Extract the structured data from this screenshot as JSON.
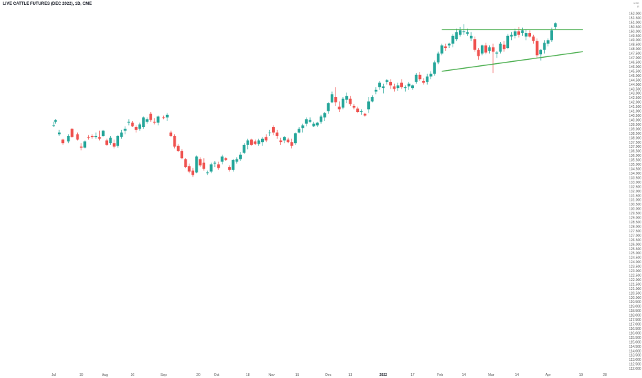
{
  "header": {
    "title": "LIVE CATTLE FUTURES (DEC 2022), 1D, CME"
  },
  "corner": {
    "line1": "USD",
    "line2": "R"
  },
  "chart_data": {
    "type": "candlestick",
    "title": "LIVE CATTLE FUTURES (DEC 2022), 1D, CME",
    "xlabel": "",
    "ylabel": "",
    "ylim": [
      111.25,
      152.75
    ],
    "y_ticks": [
      "152.000",
      "151.500",
      "151.000",
      "150.500",
      "150.000",
      "149.500",
      "149.000",
      "148.500",
      "148.000",
      "147.500",
      "147.000",
      "146.500",
      "146.000",
      "145.500",
      "145.000",
      "144.500",
      "144.000",
      "143.500",
      "143.000",
      "142.500",
      "142.000",
      "141.500",
      "141.000",
      "140.500",
      "140.000",
      "139.500",
      "139.000",
      "138.500",
      "138.000",
      "137.500",
      "137.000",
      "136.500",
      "136.000",
      "135.500",
      "135.000",
      "134.500",
      "134.000",
      "133.500",
      "133.000",
      "132.500",
      "132.000",
      "131.500",
      "131.000",
      "130.500",
      "130.000",
      "129.500",
      "129.000",
      "128.500",
      "128.000",
      "127.500",
      "127.000",
      "126.500",
      "126.000",
      "125.500",
      "125.000",
      "124.500",
      "124.000",
      "123.500",
      "123.000",
      "122.500",
      "122.000",
      "121.500",
      "121.000",
      "120.500",
      "120.000",
      "119.500",
      "119.000",
      "118.500",
      "118.000",
      "117.500",
      "117.000",
      "116.500",
      "116.000",
      "115.500",
      "115.000",
      "114.500",
      "114.000",
      "113.500",
      "113.000",
      "112.500",
      "112.000"
    ],
    "x_ticks": [
      {
        "label": "Jul",
        "day": 0,
        "bold": false
      },
      {
        "label": "19",
        "day": 15,
        "bold": false
      },
      {
        "label": "Aug",
        "day": 28,
        "bold": false
      },
      {
        "label": "16",
        "day": 43,
        "bold": false
      },
      {
        "label": "Sep",
        "day": 60,
        "bold": false
      },
      {
        "label": "20",
        "day": 79,
        "bold": false
      },
      {
        "label": "Oct",
        "day": 89,
        "bold": false
      },
      {
        "label": "18",
        "day": 106,
        "bold": false
      },
      {
        "label": "Nov",
        "day": 119,
        "bold": false
      },
      {
        "label": "15",
        "day": 133,
        "bold": false
      },
      {
        "label": "Dec",
        "day": 150,
        "bold": false
      },
      {
        "label": "13",
        "day": 162,
        "bold": false
      },
      {
        "label": "2022",
        "day": 180,
        "bold": true
      },
      {
        "label": "17",
        "day": 196,
        "bold": false
      },
      {
        "label": "Feb",
        "day": 211,
        "bold": false
      },
      {
        "label": "14",
        "day": 224,
        "bold": false
      },
      {
        "label": "Mar",
        "day": 239,
        "bold": false
      },
      {
        "label": "14",
        "day": 253,
        "bold": false
      },
      {
        "label": "Apr",
        "day": 270,
        "bold": false
      },
      {
        "label": "19",
        "day": 288,
        "bold": false
      },
      {
        "label": "28",
        "day": 301,
        "bold": false
      }
    ],
    "colors": {
      "up": "#26a69a",
      "down": "#ef5350",
      "trendline": "#4caf50"
    },
    "trendlines": [
      {
        "name": "resistance",
        "from": [
          212,
          150.2
        ],
        "to": [
          289,
          150.2
        ]
      },
      {
        "name": "support",
        "from": [
          212,
          145.5
        ],
        "to": [
          289,
          147.7
        ]
      }
    ],
    "grid": false,
    "legend": "none",
    "candles": [
      [
        0,
        139.4,
        139.8,
        139.2,
        139.4
      ],
      [
        1,
        139.8,
        140.1,
        139.6,
        140.0
      ],
      [
        3,
        138.4,
        138.9,
        138.2,
        138.6
      ],
      [
        5,
        137.8,
        137.9,
        137.2,
        137.4
      ],
      [
        8,
        137.6,
        138.4,
        137.4,
        138.2
      ],
      [
        10,
        139.0,
        139.1,
        138.0,
        138.1
      ],
      [
        13,
        138.4,
        138.6,
        137.7,
        137.8
      ],
      [
        15,
        137.0,
        137.4,
        136.6,
        136.9
      ],
      [
        17,
        136.9,
        137.7,
        136.8,
        137.6
      ],
      [
        19,
        138.1,
        138.3,
        137.8,
        138.0
      ],
      [
        21,
        138.2,
        138.4,
        137.9,
        138.1
      ],
      [
        23,
        138.1,
        138.6,
        137.9,
        138.2
      ],
      [
        25,
        138.1,
        138.8,
        137.7,
        137.9
      ],
      [
        27,
        138.2,
        138.9,
        138.1,
        138.8
      ],
      [
        29,
        137.7,
        137.9,
        137.1,
        137.2
      ],
      [
        31,
        137.4,
        138.2,
        137.2,
        138.0
      ],
      [
        33,
        137.4,
        137.8,
        136.8,
        137.0
      ],
      [
        35,
        137.1,
        138.3,
        136.9,
        138.2
      ],
      [
        37,
        138.1,
        138.9,
        137.9,
        138.6
      ],
      [
        39,
        138.8,
        139.3,
        138.4,
        139.0
      ],
      [
        41,
        139.7,
        140.1,
        139.4,
        139.8
      ],
      [
        43,
        139.7,
        139.9,
        139.2,
        139.3
      ],
      [
        45,
        139.2,
        139.4,
        138.6,
        138.9
      ],
      [
        47,
        139.0,
        139.7,
        138.8,
        139.5
      ],
      [
        49,
        139.2,
        140.4,
        139.0,
        140.3
      ],
      [
        51,
        139.8,
        140.3,
        139.6,
        140.1
      ],
      [
        53,
        140.7,
        140.9,
        139.8,
        140.0
      ],
      [
        55,
        139.8,
        140.2,
        139.5,
        139.7
      ],
      [
        57,
        139.7,
        140.5,
        139.4,
        140.4
      ],
      [
        60,
        140.3,
        140.5,
        140.1,
        140.2
      ],
      [
        62,
        140.3,
        140.8,
        139.9,
        140.6
      ],
      [
        64,
        138.6,
        138.8,
        138.1,
        138.2
      ],
      [
        66,
        138.2,
        138.4,
        136.8,
        137.0
      ],
      [
        68,
        137.1,
        137.3,
        136.4,
        136.5
      ],
      [
        70,
        136.5,
        136.7,
        135.6,
        135.7
      ],
      [
        72,
        135.6,
        135.7,
        134.6,
        134.7
      ],
      [
        74,
        134.8,
        135.1,
        134.0,
        134.2
      ],
      [
        76,
        134.3,
        134.6,
        133.6,
        133.8
      ],
      [
        78,
        134.1,
        136.0,
        134.0,
        135.9
      ],
      [
        80,
        135.6,
        135.8,
        134.7,
        134.9
      ],
      [
        82,
        135.2,
        135.7,
        134.3,
        134.5
      ],
      [
        84,
        134.0,
        134.3,
        133.8,
        134.1
      ],
      [
        86,
        134.2,
        135.2,
        134.0,
        135.0
      ],
      [
        88,
        135.1,
        135.4,
        134.7,
        135.2
      ],
      [
        90,
        135.0,
        135.3,
        134.4,
        134.6
      ],
      [
        92,
        135.3,
        136.1,
        135.0,
        135.9
      ],
      [
        94,
        135.7,
        135.8,
        135.4,
        135.5
      ],
      [
        96,
        134.7,
        134.9,
        134.2,
        134.4
      ],
      [
        98,
        134.4,
        135.6,
        134.2,
        135.5
      ],
      [
        100,
        135.3,
        135.8,
        135.1,
        135.6
      ],
      [
        102,
        135.6,
        136.4,
        135.4,
        136.1
      ],
      [
        104,
        136.3,
        137.4,
        136.2,
        137.2
      ],
      [
        106,
        137.2,
        137.9,
        136.7,
        137.7
      ],
      [
        108,
        137.8,
        137.9,
        137.1,
        137.2
      ],
      [
        110,
        137.6,
        137.8,
        137.2,
        137.3
      ],
      [
        112,
        137.3,
        137.9,
        137.1,
        137.7
      ],
      [
        114,
        137.5,
        138.1,
        137.1,
        137.9
      ],
      [
        116,
        138.1,
        138.4,
        137.5,
        137.7
      ],
      [
        118,
        138.6,
        138.9,
        138.2,
        138.6
      ],
      [
        120,
        139.2,
        139.4,
        138.3,
        138.6
      ],
      [
        122,
        138.6,
        138.9,
        137.9,
        138.2
      ],
      [
        124,
        137.7,
        138.0,
        137.2,
        137.5
      ],
      [
        126,
        137.7,
        138.2,
        137.4,
        138.1
      ],
      [
        128,
        137.8,
        138.0,
        137.4,
        137.5
      ],
      [
        130,
        137.5,
        137.9,
        136.8,
        137.1
      ],
      [
        132,
        137.4,
        138.6,
        137.2,
        138.5
      ],
      [
        134,
        138.6,
        139.2,
        138.5,
        139.0
      ],
      [
        136,
        139.1,
        139.6,
        138.6,
        139.4
      ],
      [
        138,
        139.6,
        140.3,
        139.3,
        140.1
      ],
      [
        140,
        139.8,
        140.3,
        139.7,
        140.0
      ],
      [
        142,
        139.3,
        139.8,
        139.2,
        139.6
      ],
      [
        144,
        139.4,
        139.8,
        139.2,
        139.7
      ],
      [
        146,
        139.8,
        140.6,
        139.6,
        140.4
      ],
      [
        148,
        140.3,
        140.9,
        139.9,
        140.8
      ],
      [
        150,
        141.0,
        142.0,
        140.7,
        141.9
      ],
      [
        152,
        142.0,
        143.2,
        141.9,
        142.9
      ],
      [
        154,
        142.6,
        143.7,
        141.6,
        142.0
      ],
      [
        156,
        141.5,
        142.1,
        140.9,
        141.2
      ],
      [
        158,
        141.4,
        142.6,
        141.2,
        142.4
      ],
      [
        160,
        142.3,
        143.1,
        141.9,
        142.7
      ],
      [
        162,
        142.4,
        142.7,
        141.6,
        141.8
      ],
      [
        164,
        141.6,
        141.8,
        141.2,
        141.4
      ],
      [
        166,
        141.3,
        141.5,
        140.8,
        140.9
      ],
      [
        168,
        140.9,
        141.2,
        140.6,
        141.0
      ],
      [
        170,
        140.7,
        140.8,
        140.4,
        140.5
      ],
      [
        172,
        141.2,
        142.6,
        140.8,
        142.1
      ],
      [
        174,
        142.1,
        142.8,
        142.0,
        142.6
      ],
      [
        176,
        143.2,
        143.7,
        142.9,
        143.4
      ],
      [
        178,
        143.7,
        144.4,
        143.4,
        144.2
      ],
      [
        180,
        143.6,
        144.1,
        143.0,
        143.8
      ],
      [
        182,
        144.3,
        144.6,
        144.0,
        144.5
      ],
      [
        184,
        144.3,
        144.6,
        143.5,
        143.9
      ],
      [
        186,
        143.8,
        144.1,
        143.2,
        143.5
      ],
      [
        188,
        143.6,
        144.2,
        143.3,
        143.9
      ],
      [
        190,
        144.2,
        144.6,
        143.5,
        143.7
      ],
      [
        192,
        143.6,
        143.9,
        143.2,
        143.7
      ],
      [
        194,
        143.8,
        144.3,
        143.4,
        144.1
      ],
      [
        196,
        143.6,
        144.0,
        143.4,
        143.9
      ],
      [
        198,
        144.3,
        145.3,
        144.1,
        145.1
      ],
      [
        200,
        145.1,
        145.4,
        144.4,
        144.6
      ],
      [
        202,
        144.4,
        144.7,
        144.0,
        144.2
      ],
      [
        204,
        144.3,
        145.2,
        144.0,
        144.9
      ],
      [
        206,
        144.9,
        145.5,
        144.6,
        145.2
      ],
      [
        208,
        145.2,
        146.7,
        145.0,
        146.5
      ],
      [
        210,
        146.5,
        147.7,
        146.3,
        147.5
      ],
      [
        212,
        147.5,
        148.6,
        147.3,
        148.4
      ],
      [
        214,
        148.3,
        148.6,
        147.8,
        148.1
      ],
      [
        216,
        148.4,
        148.7,
        148.1,
        148.6
      ],
      [
        218,
        148.6,
        149.7,
        148.2,
        149.5
      ],
      [
        220,
        149.1,
        150.3,
        148.9,
        149.9
      ],
      [
        222,
        149.6,
        150.5,
        149.4,
        150.1
      ],
      [
        224,
        149.9,
        150.8,
        149.6,
        150.0
      ],
      [
        226,
        149.7,
        150.3,
        149.5,
        149.9
      ],
      [
        228,
        149.2,
        149.9,
        148.9,
        149.5
      ],
      [
        230,
        149.1,
        149.4,
        147.7,
        147.9
      ],
      [
        232,
        147.9,
        148.1,
        146.8,
        147.2
      ],
      [
        234,
        147.5,
        148.5,
        147.3,
        148.4
      ],
      [
        236,
        148.4,
        148.7,
        147.4,
        147.6
      ],
      [
        238,
        147.8,
        148.4,
        147.5,
        148.2
      ],
      [
        240,
        148.2,
        148.6,
        145.3,
        147.7
      ],
      [
        242,
        147.5,
        147.8,
        147.0,
        147.6
      ],
      [
        244,
        147.7,
        148.8,
        147.5,
        148.6
      ],
      [
        246,
        148.5,
        148.9,
        147.7,
        148.0
      ],
      [
        248,
        148.1,
        149.7,
        148.0,
        149.5
      ],
      [
        250,
        149.4,
        149.9,
        149.0,
        149.6
      ],
      [
        252,
        149.5,
        150.3,
        149.2,
        150.0
      ],
      [
        254,
        150.0,
        150.5,
        149.3,
        149.6
      ],
      [
        256,
        149.8,
        150.4,
        149.5,
        150.1
      ],
      [
        258,
        149.4,
        150.2,
        149.0,
        149.8
      ],
      [
        260,
        149.8,
        150.1,
        149.3,
        149.4
      ],
      [
        262,
        149.4,
        149.6,
        148.6,
        148.9
      ],
      [
        264,
        148.9,
        149.2,
        147.0,
        147.3
      ],
      [
        266,
        147.4,
        148.0,
        146.7,
        147.9
      ],
      [
        268,
        147.9,
        149.0,
        147.5,
        148.7
      ],
      [
        270,
        148.6,
        149.2,
        148.3,
        149.0
      ],
      [
        272,
        149.0,
        150.4,
        148.8,
        150.1
      ],
      [
        274,
        150.5,
        151.0,
        150.2,
        150.9
      ]
    ]
  }
}
